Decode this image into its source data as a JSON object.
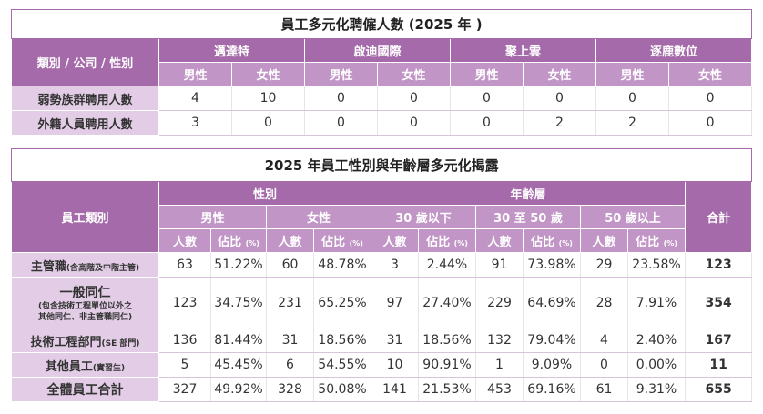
{
  "table1": {
    "title": "員工多元化聘僱人數 (2025 年 )",
    "corner_label": "類別 / 公司 / 性別",
    "companies": [
      "邁達特",
      "啟迪國際",
      "聚上雲",
      "逐鹿數位"
    ],
    "gender_labels": [
      "男性",
      "女性"
    ],
    "rows": [
      {
        "label": "弱勢族群聘用人數",
        "values": [
          "4",
          "10",
          "0",
          "0",
          "0",
          "0",
          "0",
          "0"
        ]
      },
      {
        "label": "外籍人員聘用人數",
        "values": [
          "3",
          "0",
          "0",
          "0",
          "0",
          "2",
          "2",
          "0"
        ]
      }
    ]
  },
  "table2": {
    "title": "2025 年員工性別與年齡層多元化揭露",
    "employee_category_label": "員工類別",
    "gender_group": "性別",
    "age_group": "年齡層",
    "total_label": "合計",
    "sub_groups": [
      "男性",
      "女性",
      "30 歲以下",
      "30 至 50 歲",
      "50 歲以上"
    ],
    "count_label": "人數",
    "ratio_label": "佔比",
    "ratio_unit": "(%)",
    "rows": [
      {
        "label": "主管職",
        "note": "(含高階及中階主管)",
        "values": [
          "63",
          "51.22%",
          "60",
          "48.78%",
          "3",
          "2.44%",
          "91",
          "73.98%",
          "29",
          "23.58%"
        ],
        "total": "123"
      },
      {
        "label": "一般同仁",
        "note": "(包含技術工程單位以外之",
        "note2": "其他同仁、非主管職同仁)",
        "values": [
          "123",
          "34.75%",
          "231",
          "65.25%",
          "97",
          "27.40%",
          "229",
          "64.69%",
          "28",
          "7.91%"
        ],
        "total": "354"
      },
      {
        "label": "技術工程部門",
        "note": "(SE 部門)",
        "values": [
          "136",
          "81.44%",
          "31",
          "18.56%",
          "31",
          "18.56%",
          "132",
          "79.04%",
          "4",
          "2.40%"
        ],
        "total": "167"
      },
      {
        "label": "其他員工",
        "note": "(實習生)",
        "values": [
          "5",
          "45.45%",
          "6",
          "54.55%",
          "10",
          "90.91%",
          "1",
          "9.09%",
          "0",
          "0.00%"
        ],
        "total": "11"
      },
      {
        "label": "全體員工合計",
        "note": "",
        "values": [
          "327",
          "49.92%",
          "328",
          "50.08%",
          "141",
          "21.53%",
          "453",
          "69.16%",
          "61",
          "9.31%"
        ],
        "total": "655"
      }
    ]
  }
}
